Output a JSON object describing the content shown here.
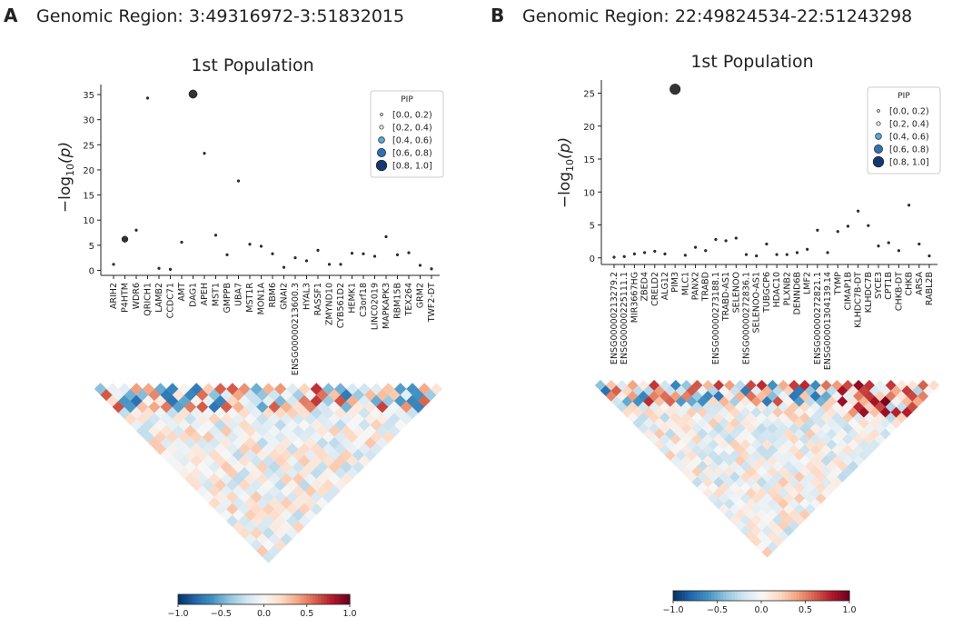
{
  "colors": {
    "point": "#333333",
    "legend_fills": [
      "#f7f7f7",
      "#d9e7f3",
      "#5aa7d8",
      "#2f71b4",
      "#16386f"
    ],
    "colorscale": [
      "#053061",
      "#2166ac",
      "#4393c3",
      "#92c5de",
      "#d1e5f0",
      "#f7f7f7",
      "#fddbc7",
      "#f4a582",
      "#d6604d",
      "#b2182b",
      "#67001f"
    ]
  },
  "chart_data": [
    {
      "type": "scatter",
      "panel_letter": "A",
      "region_title": "Genomic Region: 3:49316972-3:51832015",
      "title": "1st Population",
      "ylabel": "−log",
      "ylabel_sub": "10",
      "ylabel_arg": "(p)",
      "ylim": [
        -1,
        37
      ],
      "yticks": [
        "0",
        "5",
        "10",
        "15",
        "20",
        "25",
        "30",
        "35"
      ],
      "legend_title": "PIP",
      "legend_entries": [
        "[0.0, 0.2)",
        "[0.2, 0.4)",
        "[0.4, 0.6)",
        "[0.6, 0.8)",
        "[0.8, 1.0]"
      ],
      "categories": [
        "ARIH2",
        "P4HTM",
        "WDR6",
        "QRICH1",
        "LAMB2",
        "CCDC71",
        "AMT",
        "DAG1",
        "APEH",
        "MST1",
        "GMPPB",
        "UBA7",
        "MST1R",
        "MON1A",
        "RBM6",
        "GNAI2",
        "ENSG00000213600.3",
        "HYAL3",
        "RASSF1",
        "ZMYND10",
        "CYB561D2",
        "HEMK1",
        "C3orf18",
        "LINC02019",
        "MAPKAPK3",
        "RBM15B",
        "TEX264",
        "GRM2",
        "TWF2-DT"
      ],
      "values": [
        1.2,
        6.2,
        8.0,
        34.3,
        0.4,
        0.2,
        5.6,
        35.1,
        23.3,
        7.0,
        3.1,
        17.8,
        5.2,
        4.8,
        3.3,
        0.6,
        2.5,
        1.9,
        4.0,
        1.2,
        1.2,
        3.4,
        3.3,
        2.8,
        6.7,
        3.1,
        3.5,
        1.0,
        0.3
      ],
      "pip_class": [
        0,
        2,
        0,
        0,
        0,
        0,
        0,
        3,
        0,
        0,
        0,
        0,
        0,
        0,
        0,
        0,
        0,
        0,
        0,
        0,
        0,
        0,
        0,
        0,
        0,
        0,
        0,
        0,
        0
      ],
      "heatmap_seed": 7,
      "colorbar_ticks": [
        "−1.0",
        "−0.5",
        "0.0",
        "0.5",
        "1.0"
      ]
    },
    {
      "type": "scatter",
      "panel_letter": "B",
      "region_title": "Genomic Region: 22:49824534-22:51243298",
      "title": "1st Population",
      "ylabel": "−log",
      "ylabel_sub": "10",
      "ylabel_arg": "(p)",
      "ylim": [
        -1,
        27
      ],
      "yticks": [
        "0",
        "5",
        "10",
        "15",
        "20",
        "25"
      ],
      "legend_title": "PIP",
      "legend_entries": [
        "[0.0, 0.2)",
        "[0.2, 0.4)",
        "[0.4, 0.6)",
        "[0.6, 0.8)",
        "[0.8, 1.0]"
      ],
      "categories": [
        "ENSG00000213279.2",
        "ENSG00000225111.1",
        "MIR3667HG",
        "ZBED4",
        "CRELD2",
        "ALG12",
        "PIM3",
        "MLC1",
        "PANX2",
        "TRABD",
        "ENSG00000273188.1",
        "TRABD-AS1",
        "SELENOO",
        "ENSG00000272836.1",
        "SELENOO-AS1",
        "TUBGCP6",
        "HDAC10",
        "PLXNB2",
        "DENND6B",
        "LMF2",
        "ENSG00000272821.1",
        "ENSG00001304139.14",
        "TYMP",
        "CIMAP1B",
        "KLHDC7B-DT",
        "KLHDC7B",
        "SYCE3",
        "CPT1B",
        "CHKB-DT",
        "CHKB",
        "ARSA",
        "RABL2B"
      ],
      "values": [
        0.1,
        0.2,
        0.6,
        0.8,
        1.0,
        0.6,
        25.6,
        0.4,
        1.6,
        1.1,
        2.8,
        2.6,
        3.0,
        0.5,
        0.3,
        2.1,
        0.5,
        0.5,
        0.8,
        1.3,
        4.2,
        0.8,
        4.0,
        4.8,
        7.1,
        4.9,
        1.8,
        2.3,
        1.1,
        8.0,
        2.1,
        0.3
      ],
      "pip_class": [
        0,
        0,
        0,
        0,
        0,
        0,
        4,
        0,
        0,
        0,
        0,
        0,
        0,
        0,
        0,
        0,
        0,
        0,
        0,
        0,
        0,
        0,
        0,
        0,
        0,
        0,
        0,
        0,
        0,
        0,
        0,
        0
      ],
      "heatmap_seed": 19,
      "colorbar_ticks": [
        "−1.0",
        "−0.5",
        "0.0",
        "0.5",
        "1.0"
      ]
    }
  ]
}
